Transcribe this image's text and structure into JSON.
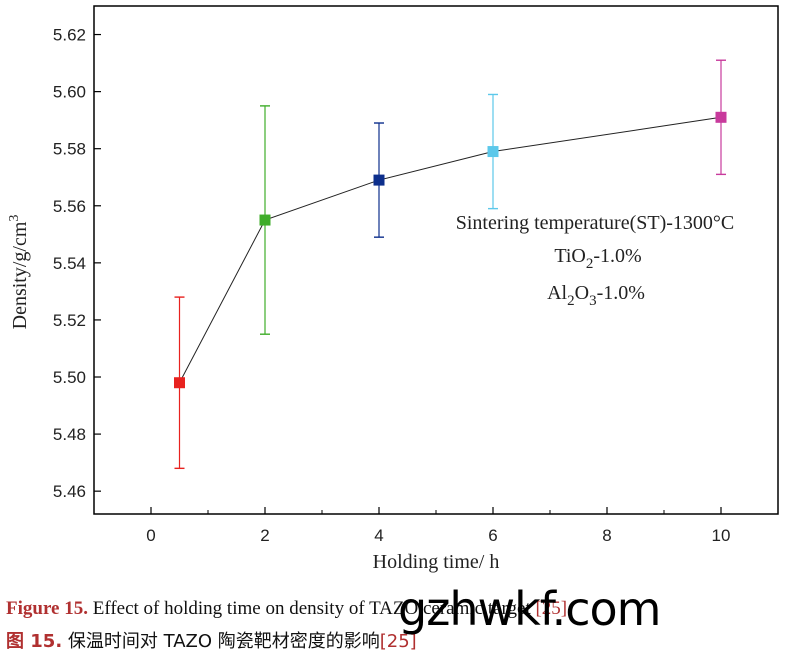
{
  "chart_data": {
    "type": "scatter-line-errorbar",
    "xlabel": "Holding time/ h",
    "ylabel_parts": [
      "Density/g/cm",
      "3"
    ],
    "xlim": [
      -1,
      11
    ],
    "ylim": [
      5.452,
      5.63
    ],
    "xticks": [
      0,
      2,
      4,
      6,
      8,
      10
    ],
    "yticks": [
      5.46,
      5.48,
      5.5,
      5.52,
      5.54,
      5.56,
      5.58,
      5.6,
      5.62
    ],
    "points": [
      {
        "x": 0.5,
        "y": 5.498,
        "err": 0.03,
        "color": "#e8221f"
      },
      {
        "x": 2,
        "y": 5.555,
        "err": 0.04,
        "color": "#3fad2a"
      },
      {
        "x": 4,
        "y": 5.569,
        "err": 0.02,
        "color": "#0d2f8c"
      },
      {
        "x": 6,
        "y": 5.579,
        "err": 0.02,
        "color": "#5cc8ea"
      },
      {
        "x": 10,
        "y": 5.591,
        "err": 0.02,
        "color": "#c83a9c"
      }
    ],
    "annotation": {
      "line1": "Sintering temperature(ST)-1300°C",
      "line2": [
        "TiO",
        "2",
        "-1.0%"
      ],
      "line3": [
        "Al",
        "2",
        "O",
        "3",
        "-1.0%"
      ]
    }
  },
  "caption": {
    "en_label": "Figure 15.",
    "en_text": " Effect of holding time on density of TAZO ceramic target ",
    "en_ref": "[25]",
    "zh_label": "图 15.",
    "zh_text": " 保温时间对 TAZO 陶瓷靶材密度的影响",
    "zh_ref": "[25]"
  },
  "watermark": "gzhwkf.com"
}
